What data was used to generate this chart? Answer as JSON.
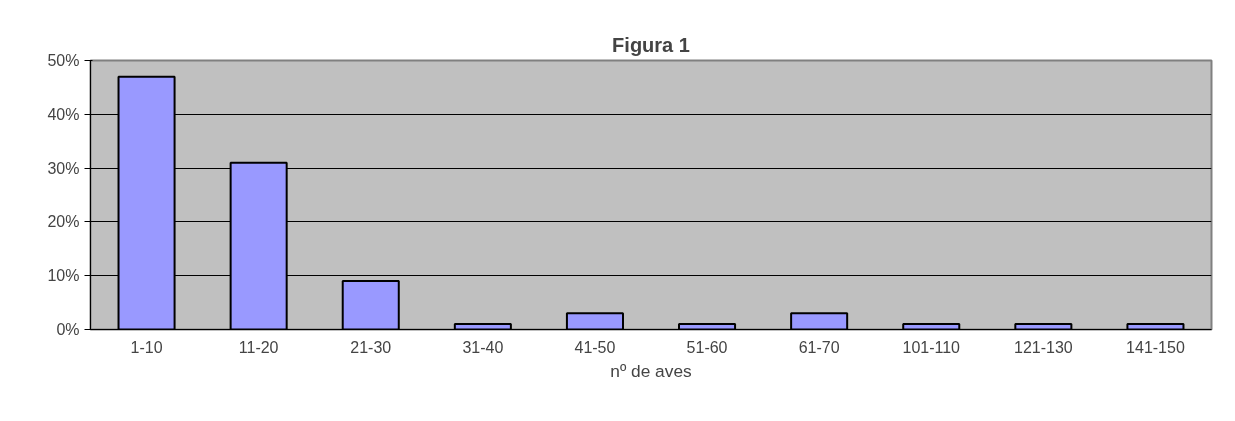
{
  "chart_data": {
    "type": "bar",
    "title": "Figura 1",
    "xlabel": "nº de aves",
    "categories": [
      "1-10",
      "11-20",
      "21-30",
      "31-40",
      "41-50",
      "51-60",
      "61-70",
      "101-110",
      "121-130",
      "141-150"
    ],
    "values": [
      47,
      31,
      9,
      1,
      3,
      1,
      3,
      1,
      1,
      1
    ],
    "color": "#9999ff",
    "ylim": [
      0,
      50
    ],
    "yticks": [
      {
        "value": 0,
        "label": "0%"
      },
      {
        "value": 10,
        "label": "10%"
      },
      {
        "value": 20,
        "label": "20%"
      },
      {
        "value": 30,
        "label": "30%"
      },
      {
        "value": 40,
        "label": "40%"
      },
      {
        "value": 50,
        "label": "50%"
      }
    ],
    "grid": "y"
  }
}
